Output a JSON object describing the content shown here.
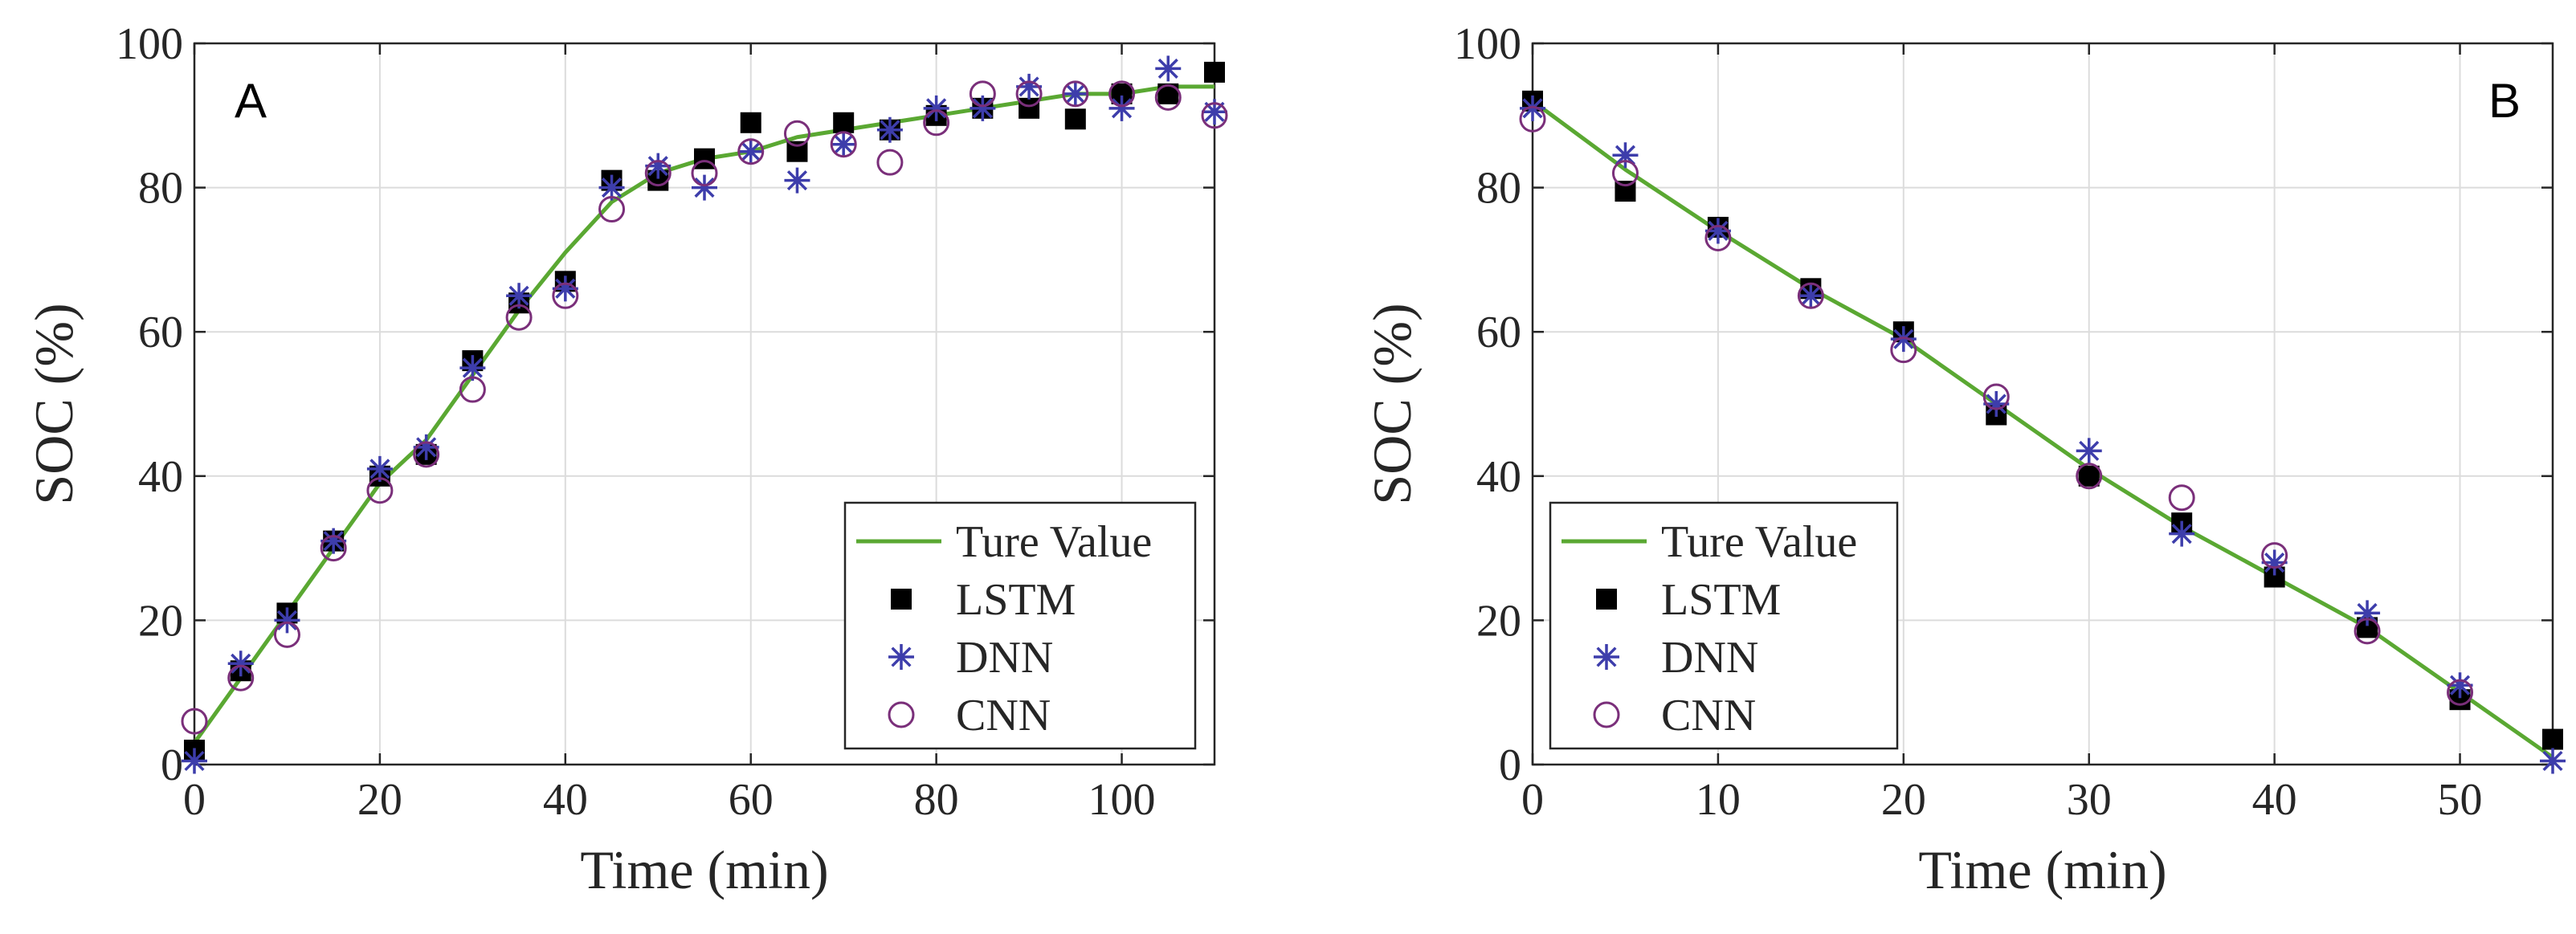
{
  "chart_data": [
    {
      "type": "line",
      "panel_label": "A",
      "xlabel": "Time (min)",
      "ylabel": "SOC (%)",
      "xlim": [
        0,
        110
      ],
      "ylim": [
        0,
        100
      ],
      "xticks": [
        0,
        20,
        40,
        60,
        80,
        100
      ],
      "yticks": [
        0,
        20,
        40,
        60,
        80,
        100
      ],
      "grid": true,
      "legend_position": "bottom-right",
      "legend": [
        "Ture Value",
        "LSTM",
        "DNN",
        "CNN"
      ],
      "series": [
        {
          "name": "Ture Value",
          "style": "line",
          "color": "#5aa832",
          "x": [
            0,
            5,
            10,
            15,
            20,
            25,
            30,
            35,
            40,
            45,
            50,
            55,
            60,
            65,
            70,
            75,
            80,
            85,
            90,
            95,
            100,
            105,
            110
          ],
          "values": [
            3,
            12,
            21,
            30,
            39,
            45,
            54,
            63,
            71,
            78,
            82,
            84,
            85,
            87,
            88,
            89,
            90,
            91,
            92,
            93,
            93,
            94,
            94
          ]
        },
        {
          "name": "LSTM",
          "style": "square",
          "color": "#000000",
          "x": [
            0,
            5,
            10,
            15,
            20,
            25,
            30,
            35,
            40,
            45,
            50,
            55,
            60,
            65,
            70,
            75,
            80,
            85,
            90,
            95,
            100,
            105,
            110
          ],
          "values": [
            2,
            13,
            21,
            31,
            40,
            43,
            56,
            64,
            67,
            81,
            81,
            84,
            89,
            85,
            89,
            88,
            90,
            91,
            91,
            89.5,
            93,
            93,
            96
          ]
        },
        {
          "name": "DNN",
          "style": "asterisk",
          "color": "#3d3dab",
          "x": [
            0,
            5,
            10,
            15,
            20,
            25,
            30,
            35,
            40,
            45,
            50,
            55,
            60,
            65,
            70,
            75,
            80,
            85,
            90,
            95,
            100,
            105,
            110
          ],
          "values": [
            0.5,
            14,
            20,
            31,
            41,
            44,
            55,
            65,
            66,
            80,
            83,
            80,
            85,
            81,
            86,
            88,
            91,
            91,
            94,
            93,
            91,
            96.5,
            90.5
          ]
        },
        {
          "name": "CNN",
          "style": "circle",
          "color": "#7a2f7a",
          "x": [
            0,
            5,
            10,
            15,
            20,
            25,
            30,
            35,
            40,
            45,
            50,
            55,
            60,
            65,
            70,
            75,
            80,
            85,
            90,
            95,
            100,
            105,
            110
          ],
          "values": [
            6,
            12,
            18,
            30,
            38,
            43,
            52,
            62,
            65,
            77,
            82,
            82,
            85,
            87.5,
            86,
            83.5,
            89,
            93,
            93,
            93,
            93,
            92.5,
            90
          ]
        }
      ]
    },
    {
      "type": "line",
      "panel_label": "B",
      "xlabel": "Time (min)",
      "ylabel": "SOC (%)",
      "xlim": [
        0,
        55
      ],
      "ylim": [
        0,
        100
      ],
      "xticks": [
        0,
        10,
        20,
        30,
        40,
        50
      ],
      "yticks": [
        0,
        20,
        40,
        60,
        80,
        100
      ],
      "grid": true,
      "legend_position": "bottom-left",
      "legend": [
        "Ture Value",
        "LSTM",
        "DNN",
        "CNN"
      ],
      "series": [
        {
          "name": "Ture Value",
          "style": "line",
          "color": "#5aa832",
          "x": [
            0,
            5,
            10,
            15,
            20,
            25,
            30,
            35,
            40,
            45,
            50,
            55
          ],
          "values": [
            92,
            82.5,
            74,
            66,
            59,
            50,
            41,
            33,
            26,
            19,
            10,
            1
          ]
        },
        {
          "name": "LSTM",
          "style": "square",
          "color": "#000000",
          "x": [
            0,
            5,
            10,
            15,
            20,
            25,
            30,
            35,
            40,
            45,
            50,
            55
          ],
          "values": [
            92,
            79.5,
            74.5,
            66,
            60,
            48.5,
            40,
            33.5,
            26,
            19,
            9,
            3.5
          ]
        },
        {
          "name": "DNN",
          "style": "asterisk",
          "color": "#3d3dab",
          "x": [
            0,
            5,
            10,
            15,
            20,
            25,
            30,
            35,
            40,
            45,
            50,
            55
          ],
          "values": [
            91,
            84.5,
            74,
            65,
            59,
            50,
            43.5,
            32,
            28,
            21,
            11,
            0.5
          ]
        },
        {
          "name": "CNN",
          "style": "circle",
          "color": "#7a2f7a",
          "x": [
            0,
            5,
            10,
            15,
            20,
            25,
            30,
            35,
            40,
            45,
            50
          ],
          "values": [
            89.5,
            82,
            73,
            65,
            57.5,
            51,
            40,
            37,
            29,
            18.5,
            10
          ]
        }
      ]
    }
  ]
}
